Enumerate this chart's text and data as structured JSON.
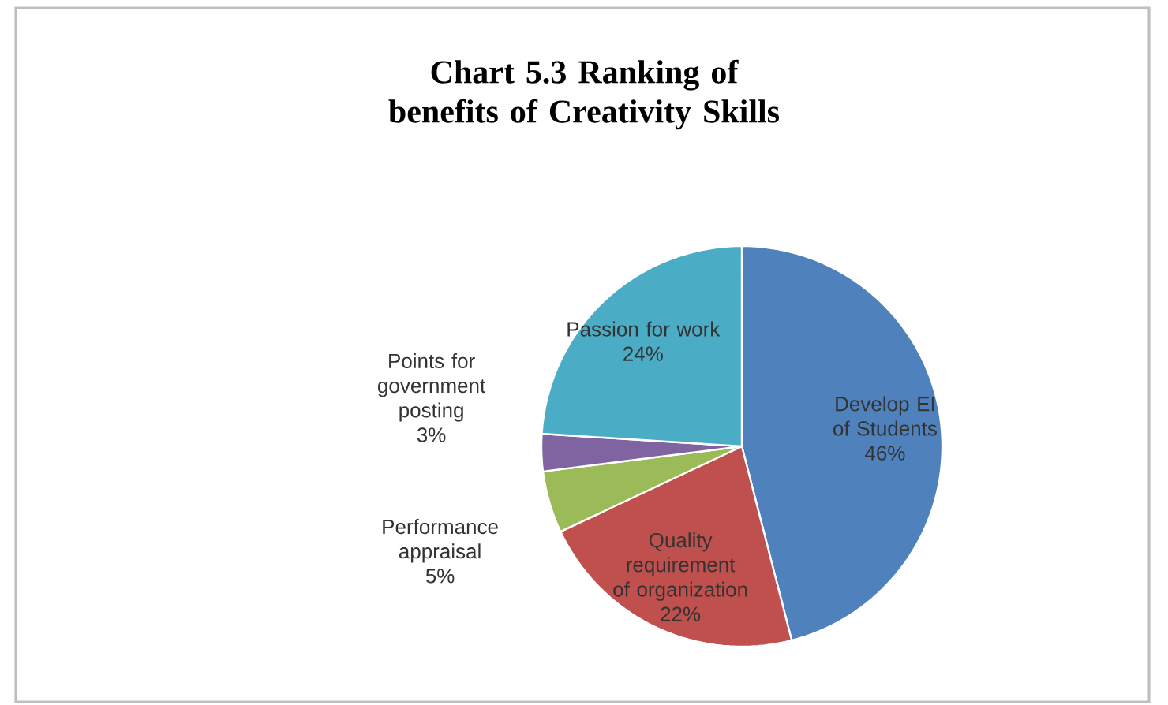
{
  "chart_data": {
    "type": "pie",
    "title": "Chart 5.3 Ranking of benefits of Creativity Skills",
    "categories": [
      "Develop EI of Students",
      "Quality requirement of organization",
      "Performance appraisal",
      "Points for government posting",
      "Passion for work"
    ],
    "values": [
      46,
      22,
      5,
      3,
      24
    ],
    "colors": [
      "#4f81bd",
      "#c0504d",
      "#9bbb59",
      "#8064a2",
      "#4bacc6"
    ],
    "value_labels": [
      "46%",
      "22%",
      "5%",
      "3%",
      "24%"
    ]
  }
}
